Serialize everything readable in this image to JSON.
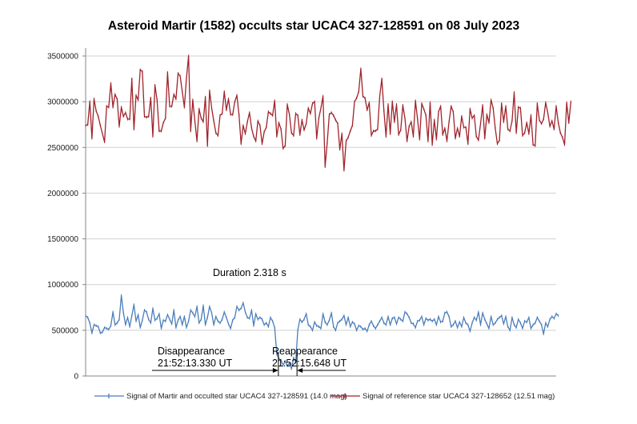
{
  "chart_data": {
    "type": "line",
    "title": "Asteroid Martir (1582) occults star UCAC4 327-128591 on 08 July 2023",
    "xlabel": "",
    "ylabel": "",
    "ylim": [
      0,
      3500000
    ],
    "y_ticks": [
      "0",
      "500000",
      "1000000",
      "1500000",
      "2000000",
      "2500000",
      "3000000",
      "3500000"
    ],
    "x_ticks": [],
    "grid": "horizontal",
    "legend_position": "bottom",
    "x_count": 225,
    "series": [
      {
        "name": "Signal of Martir and occulted star UCAC4 327-128591 (14.0 mag)",
        "color": "#4a7ebb",
        "values": [
          660000,
          640000,
          580000,
          470000,
          560000,
          550000,
          540000,
          470000,
          480000,
          530000,
          520000,
          510000,
          550000,
          700000,
          560000,
          580000,
          620000,
          880000,
          690000,
          560000,
          640000,
          540000,
          660000,
          780000,
          600000,
          670000,
          530000,
          610000,
          720000,
          700000,
          620000,
          580000,
          740000,
          610000,
          630000,
          680000,
          520000,
          610000,
          600000,
          670000,
          620000,
          570000,
          720000,
          530000,
          610000,
          650000,
          560000,
          650000,
          530000,
          600000,
          720000,
          690000,
          650000,
          760000,
          580000,
          620000,
          770000,
          560000,
          640000,
          760000,
          690000,
          560000,
          650000,
          600000,
          580000,
          620000,
          700000,
          640000,
          570000,
          520000,
          610000,
          640000,
          760000,
          720000,
          740000,
          800000,
          700000,
          640000,
          630000,
          720000,
          550000,
          680000,
          620000,
          640000,
          620000,
          560000,
          580000,
          540000,
          640000,
          600000,
          530000,
          240000,
          190000,
          170000,
          120000,
          160000,
          110000,
          140000,
          80000,
          200000,
          150000,
          500000,
          620000,
          590000,
          620000,
          680000,
          560000,
          540000,
          500000,
          590000,
          550000,
          540000,
          520000,
          680000,
          590000,
          560000,
          610000,
          690000,
          540000,
          500000,
          580000,
          600000,
          620000,
          660000,
          560000,
          640000,
          540000,
          590000,
          570000,
          500000,
          550000,
          540000,
          510000,
          520000,
          490000,
          560000,
          600000,
          550000,
          520000,
          560000,
          600000,
          640000,
          580000,
          560000,
          650000,
          560000,
          630000,
          640000,
          570000,
          640000,
          620000,
          600000,
          700000,
          680000,
          640000,
          580000,
          570000,
          530000,
          600000,
          610000,
          650000,
          560000,
          630000,
          610000,
          620000,
          600000,
          620000,
          560000,
          650000,
          590000,
          600000,
          690000,
          700000,
          650000,
          540000,
          560000,
          600000,
          530000,
          590000,
          540000,
          640000,
          580000,
          560000,
          490000,
          580000,
          640000,
          610000,
          700000,
          560000,
          690000,
          620000,
          570000,
          520000,
          650000,
          560000,
          580000,
          620000,
          640000,
          660000,
          570000,
          650000,
          540000,
          500000,
          640000,
          560000,
          530000,
          620000,
          580000,
          520000,
          600000,
          590000,
          640000,
          520000,
          560000,
          580000,
          640000,
          600000,
          560000,
          460000,
          580000,
          540000,
          620000,
          650000,
          630000,
          680000,
          660000
        ]
      },
      {
        "name": "Signal of reference star UCAC4 327-128652 (12.51 mag)",
        "color": "#a0232b",
        "values": [
          2740000,
          2750000,
          3000000,
          2600000,
          3030000,
          2900000,
          2840000,
          2740000,
          2650000,
          2560000,
          2950000,
          2940000,
          3200000,
          2940000,
          3080000,
          3030000,
          2730000,
          2940000,
          2840000,
          2880000,
          2810000,
          2810000,
          3250000,
          2700000,
          3070000,
          3020000,
          3350000,
          3330000,
          2840000,
          2830000,
          2840000,
          3040000,
          2620000,
          3180000,
          3020000,
          2680000,
          2680000,
          2770000,
          2820000,
          3320000,
          2950000,
          2950000,
          3080000,
          3030000,
          3310000,
          3280000,
          3110000,
          2940000,
          3260000,
          3500000,
          2680000,
          3020000,
          2790000,
          2570000,
          2920000,
          2820000,
          2780000,
          3050000,
          2520000,
          3120000,
          2930000,
          2790000,
          2660000,
          2630000,
          2850000,
          2870000,
          3110000,
          2910000,
          3030000,
          2860000,
          2860000,
          3000000,
          3070000,
          2860000,
          2540000,
          2740000,
          2650000,
          2780000,
          2880000,
          2710000,
          2620000,
          2570000,
          2790000,
          2740000,
          2540000,
          2670000,
          2720000,
          2890000,
          2870000,
          2850000,
          3010000,
          2620000,
          2770000,
          2700000,
          2490000,
          2520000,
          2970000,
          2860000,
          2660000,
          2630000,
          2870000,
          2850000,
          2640000,
          2800000,
          2690000,
          2760000,
          2930000,
          2870000,
          2980000,
          3000000,
          2600000,
          2820000,
          2930000,
          3060000,
          2290000,
          2550000,
          2860000,
          2880000,
          2850000,
          2800000,
          2760000,
          2480000,
          2650000,
          2250000,
          2570000,
          2610000,
          2680000,
          2740000,
          3000000,
          3040000,
          3110000,
          3360000,
          3060000,
          3040000,
          2910000,
          2990000,
          2630000,
          2680000,
          2680000,
          2700000,
          3060000,
          3250000,
          2900000,
          2620000,
          2970000,
          2650000,
          3000000,
          2780000,
          2970000,
          2640000,
          2690000,
          2960000,
          2820000,
          2570000,
          2730000,
          2780000,
          2620000,
          3010000,
          2810000,
          2590000,
          2980000,
          2920000,
          2850000,
          2570000,
          2990000,
          2530000,
          2800000,
          2590000,
          2890000,
          2950000,
          2640000,
          2710000,
          2570000,
          2780000,
          2950000,
          2890000,
          2600000,
          2710000,
          2620000,
          2840000,
          2720000,
          2720000,
          2540000,
          2920000,
          2820000,
          2850000,
          2620000,
          2580000,
          2760000,
          2960000,
          2600000,
          2860000,
          2770000,
          3020000,
          2930000,
          2710000,
          2540000,
          2580000,
          2980000,
          2780000,
          2950000,
          2700000,
          2680000,
          2790000,
          3100000,
          2660000,
          2940000,
          2930000,
          2630000,
          2660000,
          2770000,
          2650000,
          2850000,
          2530000,
          2520000,
          2980000,
          2800000,
          2760000,
          2810000,
          2990000,
          2880000,
          2730000,
          2790000,
          2700000,
          2950000,
          2770000,
          2660000,
          2610000,
          2530000,
          2990000,
          2770000,
          3000000
        ]
      }
    ],
    "annotations": [
      {
        "id": "duration",
        "text": "Duration 2.318 s"
      },
      {
        "id": "disappearance",
        "line1": "Disappearance",
        "line2": "21:52:13.330 UT",
        "x_index": 91
      },
      {
        "id": "reappearance",
        "line1": "Reappearance",
        "line2": "21:52:15.648 UT",
        "x_index": 101
      }
    ]
  }
}
